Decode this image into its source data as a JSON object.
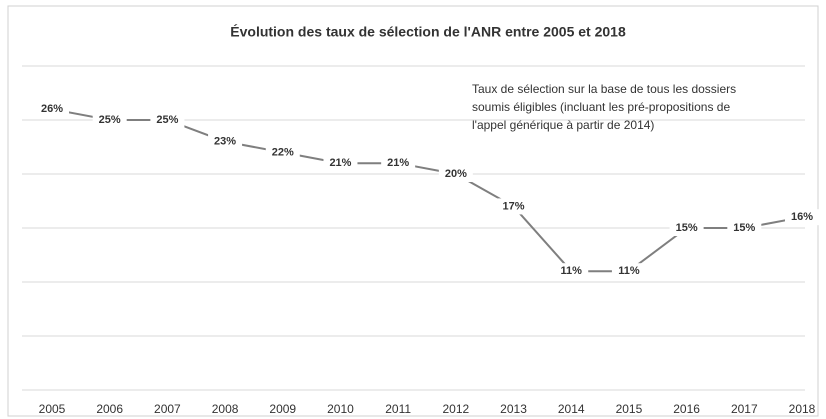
{
  "chart_data": {
    "type": "line",
    "title": "Évolution des taux de sélection de l'ANR entre 2005 et 2018",
    "annotation": [
      "Taux de sélection sur la base de tous les dossiers",
      "soumis éligibles (incluant les pré-propositions de",
      "l'appel générique à partir de 2014)"
    ],
    "categories": [
      "2005",
      "2006",
      "2007",
      "2008",
      "2009",
      "2010",
      "2011",
      "2012",
      "2013",
      "2014",
      "2015",
      "2016",
      "2017",
      "2018"
    ],
    "values": [
      26,
      25,
      25,
      23,
      22,
      21,
      21,
      20,
      17,
      11,
      11,
      15,
      15,
      16
    ],
    "value_labels": [
      "26%",
      "25%",
      "25%",
      "23%",
      "22%",
      "21%",
      "21%",
      "20%",
      "17%",
      "11%",
      "11%",
      "15%",
      "15%",
      "16%"
    ],
    "color": "#7f7f7f",
    "ylim": [
      0,
      30
    ],
    "yticks": [
      0,
      5,
      10,
      15,
      20,
      25,
      30
    ],
    "grid": true
  }
}
